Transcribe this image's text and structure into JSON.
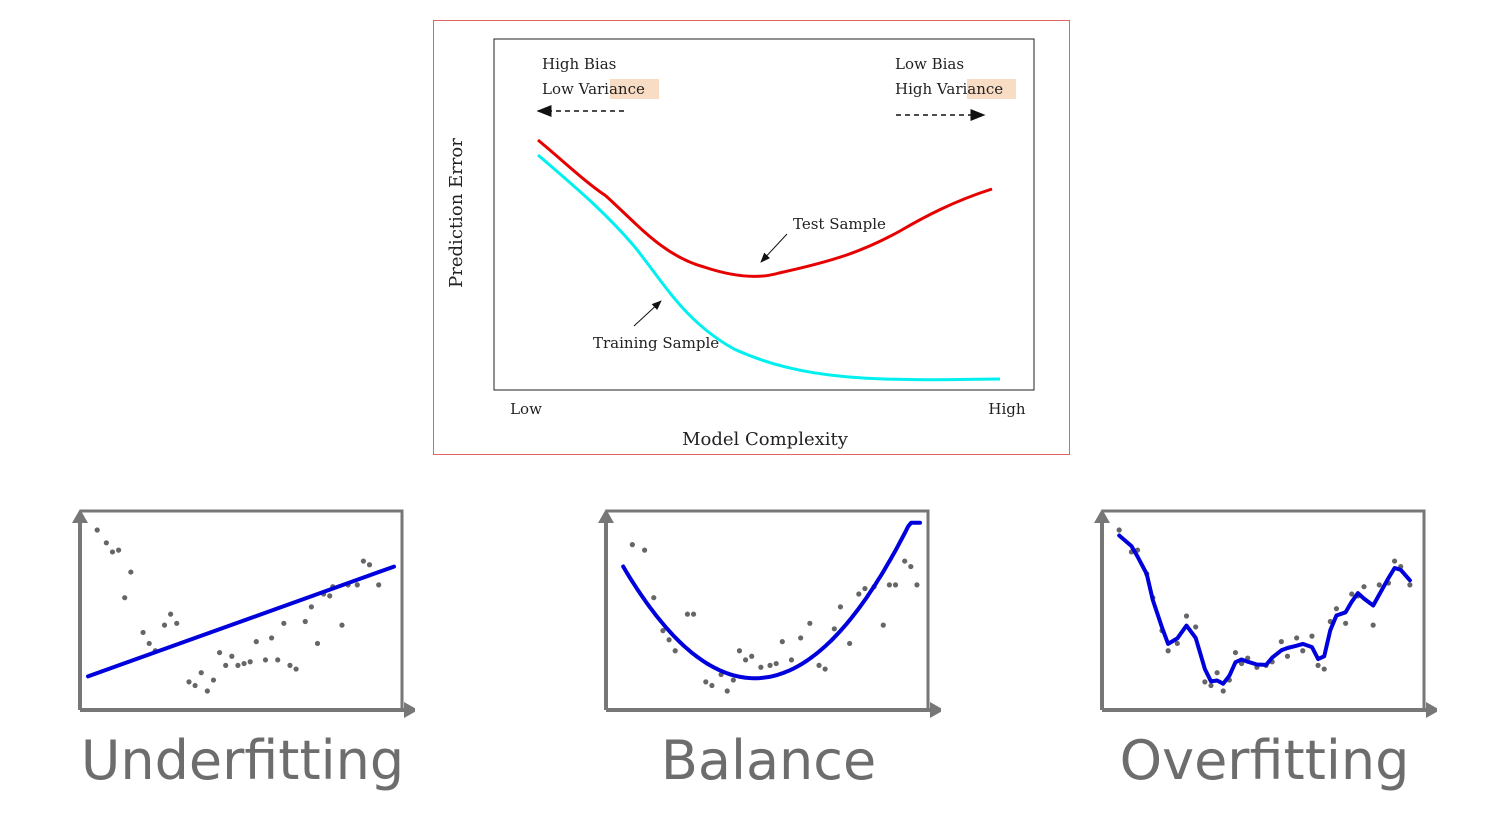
{
  "main_chart": {
    "ylabel": "Prediction Error",
    "xlabel": "Model Complexity",
    "x_low_label": "Low",
    "x_high_label": "High",
    "left_note": {
      "line1": "High Bias",
      "line2_prefix": "Low ",
      "line2_highlight": "Variance"
    },
    "right_note": {
      "line1": "Low Bias",
      "line2_prefix": "High ",
      "line2_highlight": "Variance"
    },
    "test_label": "Test Sample",
    "train_label": "Training Sample",
    "colors": {
      "test": "#e60000",
      "train": "#00f0f0",
      "highlight": "#f9dcc4",
      "frame": "#e06666"
    }
  },
  "chart_data": {
    "type": "line",
    "xlabel": "Model Complexity",
    "ylabel": "Prediction Error",
    "x_tick_labels": [
      "Low",
      "High"
    ],
    "series": [
      {
        "name": "Test Sample",
        "x": [
          0,
          0.15,
          0.3,
          0.45,
          0.5,
          0.6,
          0.75,
          0.9,
          1
        ],
        "y": [
          0.72,
          0.55,
          0.38,
          0.32,
          0.32,
          0.36,
          0.42,
          0.5,
          0.57
        ]
      },
      {
        "name": "Training Sample",
        "x": [
          0,
          0.15,
          0.3,
          0.4,
          0.5,
          0.6,
          0.75,
          0.9,
          1
        ],
        "y": [
          0.69,
          0.53,
          0.3,
          0.2,
          0.14,
          0.11,
          0.08,
          0.065,
          0.06
        ]
      }
    ]
  },
  "panels": [
    {
      "label": "Underfitting",
      "fit": [
        [
          0,
          0.14
        ],
        [
          1,
          0.74
        ]
      ],
      "points": [
        [
          0.03,
          0.94
        ],
        [
          0.06,
          0.87
        ],
        [
          0.08,
          0.82
        ],
        [
          0.1,
          0.83
        ],
        [
          0.12,
          0.57
        ],
        [
          0.14,
          0.71
        ],
        [
          0.18,
          0.38
        ],
        [
          0.2,
          0.32
        ],
        [
          0.22,
          0.28
        ],
        [
          0.25,
          0.42
        ],
        [
          0.27,
          0.48
        ],
        [
          0.29,
          0.43
        ],
        [
          0.33,
          0.11
        ],
        [
          0.35,
          0.09
        ],
        [
          0.37,
          0.16
        ],
        [
          0.39,
          0.06
        ],
        [
          0.41,
          0.12
        ],
        [
          0.43,
          0.27
        ],
        [
          0.45,
          0.2
        ],
        [
          0.47,
          0.25
        ],
        [
          0.49,
          0.2
        ],
        [
          0.51,
          0.21
        ],
        [
          0.53,
          0.22
        ],
        [
          0.55,
          0.33
        ],
        [
          0.58,
          0.23
        ],
        [
          0.6,
          0.35
        ],
        [
          0.62,
          0.23
        ],
        [
          0.64,
          0.43
        ],
        [
          0.66,
          0.2
        ],
        [
          0.68,
          0.18
        ],
        [
          0.71,
          0.44
        ],
        [
          0.73,
          0.52
        ],
        [
          0.75,
          0.32
        ],
        [
          0.77,
          0.59
        ],
        [
          0.79,
          0.58
        ],
        [
          0.8,
          0.63
        ],
        [
          0.83,
          0.42
        ],
        [
          0.85,
          0.64
        ],
        [
          0.88,
          0.64
        ],
        [
          0.9,
          0.77
        ],
        [
          0.92,
          0.75
        ],
        [
          0.95,
          0.64
        ]
      ]
    },
    {
      "label": "Balance",
      "fit": "quadratic",
      "points": [
        [
          0.06,
          0.86
        ],
        [
          0.1,
          0.83
        ],
        [
          0.13,
          0.57
        ],
        [
          0.16,
          0.39
        ],
        [
          0.18,
          0.34
        ],
        [
          0.2,
          0.28
        ],
        [
          0.24,
          0.48
        ],
        [
          0.26,
          0.48
        ],
        [
          0.3,
          0.11
        ],
        [
          0.32,
          0.09
        ],
        [
          0.35,
          0.15
        ],
        [
          0.37,
          0.06
        ],
        [
          0.39,
          0.12
        ],
        [
          0.41,
          0.28
        ],
        [
          0.43,
          0.23
        ],
        [
          0.45,
          0.25
        ],
        [
          0.48,
          0.19
        ],
        [
          0.51,
          0.2
        ],
        [
          0.53,
          0.21
        ],
        [
          0.55,
          0.33
        ],
        [
          0.58,
          0.23
        ],
        [
          0.61,
          0.35
        ],
        [
          0.64,
          0.43
        ],
        [
          0.67,
          0.2
        ],
        [
          0.69,
          0.18
        ],
        [
          0.72,
          0.4
        ],
        [
          0.74,
          0.52
        ],
        [
          0.77,
          0.32
        ],
        [
          0.8,
          0.59
        ],
        [
          0.82,
          0.62
        ],
        [
          0.85,
          0.63
        ],
        [
          0.88,
          0.42
        ],
        [
          0.9,
          0.64
        ],
        [
          0.92,
          0.64
        ],
        [
          0.95,
          0.77
        ],
        [
          0.97,
          0.74
        ],
        [
          0.99,
          0.64
        ]
      ]
    },
    {
      "label": "Overfitting",
      "fit": "wiggly",
      "points": [
        [
          0.03,
          0.94
        ],
        [
          0.07,
          0.82
        ],
        [
          0.09,
          0.83
        ],
        [
          0.12,
          0.7
        ],
        [
          0.14,
          0.57
        ],
        [
          0.17,
          0.39
        ],
        [
          0.19,
          0.28
        ],
        [
          0.22,
          0.32
        ],
        [
          0.25,
          0.47
        ],
        [
          0.28,
          0.41
        ],
        [
          0.31,
          0.11
        ],
        [
          0.33,
          0.09
        ],
        [
          0.35,
          0.16
        ],
        [
          0.37,
          0.06
        ],
        [
          0.39,
          0.12
        ],
        [
          0.41,
          0.27
        ],
        [
          0.43,
          0.21
        ],
        [
          0.45,
          0.24
        ],
        [
          0.48,
          0.19
        ],
        [
          0.51,
          0.2
        ],
        [
          0.53,
          0.22
        ],
        [
          0.56,
          0.33
        ],
        [
          0.58,
          0.25
        ],
        [
          0.61,
          0.35
        ],
        [
          0.63,
          0.28
        ],
        [
          0.66,
          0.36
        ],
        [
          0.68,
          0.2
        ],
        [
          0.7,
          0.18
        ],
        [
          0.72,
          0.44
        ],
        [
          0.74,
          0.51
        ],
        [
          0.77,
          0.43
        ],
        [
          0.79,
          0.59
        ],
        [
          0.81,
          0.58
        ],
        [
          0.83,
          0.63
        ],
        [
          0.86,
          0.42
        ],
        [
          0.88,
          0.64
        ],
        [
          0.91,
          0.65
        ],
        [
          0.93,
          0.77
        ],
        [
          0.95,
          0.74
        ],
        [
          0.98,
          0.64
        ]
      ]
    }
  ]
}
